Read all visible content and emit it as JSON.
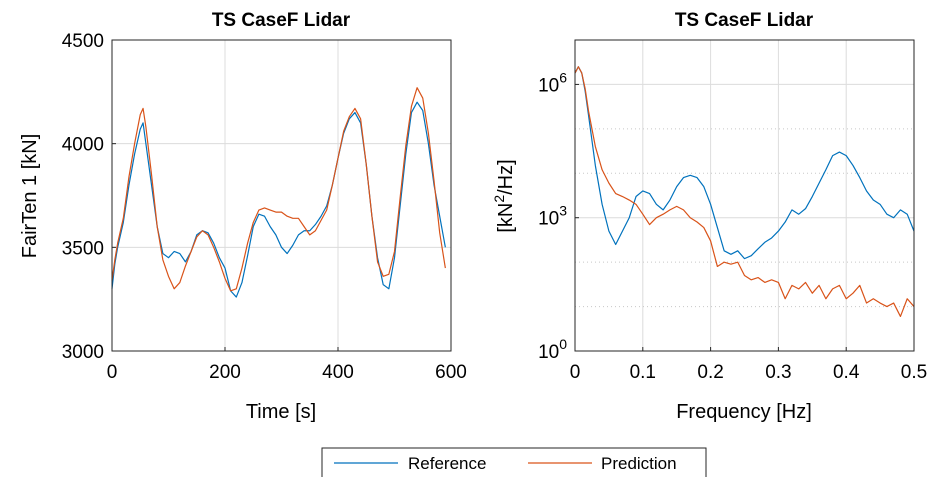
{
  "chart_data": [
    {
      "type": "line",
      "title": "TS CaseF Lidar",
      "xlabel": "Time [s]",
      "ylabel": "FairTen 1 [kN]",
      "xlim": [
        0,
        600
      ],
      "ylim": [
        3000,
        4500
      ],
      "xticks": [
        0,
        200,
        400,
        600
      ],
      "yticks": [
        3000,
        3500,
        4000,
        4500
      ],
      "xtick_labels": [
        "0",
        "200",
        "400",
        "600"
      ],
      "ytick_labels": [
        "3000",
        "3500",
        "4000",
        "4500"
      ],
      "grid": true,
      "series": [
        {
          "name": "Reference",
          "color": "#0072BD",
          "x": [
            0,
            5,
            10,
            20,
            30,
            40,
            50,
            55,
            60,
            70,
            80,
            90,
            100,
            110,
            120,
            130,
            140,
            150,
            160,
            170,
            180,
            190,
            200,
            210,
            220,
            230,
            240,
            250,
            260,
            270,
            280,
            290,
            300,
            310,
            320,
            330,
            340,
            350,
            360,
            370,
            380,
            390,
            400,
            410,
            420,
            430,
            440,
            450,
            460,
            470,
            480,
            490,
            500,
            510,
            520,
            530,
            540,
            550,
            560,
            570,
            580,
            590
          ],
          "y": [
            3300,
            3420,
            3500,
            3620,
            3800,
            3950,
            4070,
            4100,
            4000,
            3800,
            3600,
            3470,
            3450,
            3480,
            3470,
            3430,
            3480,
            3560,
            3580,
            3570,
            3520,
            3450,
            3400,
            3290,
            3260,
            3330,
            3460,
            3600,
            3660,
            3650,
            3600,
            3560,
            3500,
            3470,
            3510,
            3560,
            3580,
            3580,
            3610,
            3650,
            3700,
            3800,
            3930,
            4050,
            4120,
            4150,
            4100,
            3900,
            3650,
            3450,
            3320,
            3300,
            3450,
            3700,
            3950,
            4150,
            4200,
            4160,
            4000,
            3800,
            3650,
            3500
          ]
        },
        {
          "name": "Prediction",
          "color": "#D95319",
          "x": [
            0,
            5,
            10,
            20,
            30,
            40,
            50,
            55,
            60,
            70,
            80,
            90,
            100,
            110,
            120,
            130,
            140,
            150,
            160,
            170,
            180,
            190,
            200,
            210,
            220,
            230,
            240,
            250,
            260,
            270,
            280,
            290,
            300,
            310,
            320,
            330,
            340,
            350,
            360,
            370,
            380,
            390,
            400,
            410,
            420,
            430,
            440,
            450,
            460,
            470,
            480,
            490,
            500,
            510,
            520,
            530,
            540,
            550,
            560,
            570,
            580,
            590
          ],
          "y": [
            3340,
            3440,
            3520,
            3640,
            3840,
            4000,
            4140,
            4170,
            4080,
            3850,
            3600,
            3440,
            3360,
            3300,
            3330,
            3410,
            3480,
            3550,
            3580,
            3560,
            3500,
            3430,
            3350,
            3290,
            3300,
            3400,
            3520,
            3620,
            3680,
            3690,
            3680,
            3670,
            3670,
            3650,
            3640,
            3640,
            3600,
            3560,
            3580,
            3630,
            3680,
            3800,
            3930,
            4060,
            4130,
            4170,
            4120,
            3900,
            3650,
            3430,
            3360,
            3370,
            3480,
            3740,
            3990,
            4180,
            4270,
            4220,
            4050,
            3820,
            3570,
            3400
          ]
        }
      ]
    },
    {
      "type": "line",
      "title": "TS CaseF Lidar",
      "xlabel": "Frequency [Hz]",
      "ylabel": "[kN²/Hz]",
      "yscale": "log",
      "xlim": [
        0,
        0.5
      ],
      "ylim": [
        1,
        10000000
      ],
      "xticks": [
        0,
        0.1,
        0.2,
        0.3,
        0.4,
        0.5
      ],
      "yticks": [
        1,
        1000,
        1000000
      ],
      "xtick_labels": [
        "0",
        "0.1",
        "0.2",
        "0.3",
        "0.4",
        "0.5"
      ],
      "ytick_labels": [
        "10^0",
        "10^3",
        "10^6"
      ],
      "grid": true,
      "series": [
        {
          "name": "Reference",
          "color": "#0072BD",
          "x": [
            0,
            0.005,
            0.01,
            0.015,
            0.02,
            0.03,
            0.04,
            0.05,
            0.06,
            0.07,
            0.08,
            0.09,
            0.1,
            0.11,
            0.12,
            0.13,
            0.14,
            0.15,
            0.16,
            0.17,
            0.18,
            0.19,
            0.2,
            0.21,
            0.22,
            0.23,
            0.24,
            0.25,
            0.26,
            0.27,
            0.28,
            0.29,
            0.3,
            0.31,
            0.32,
            0.33,
            0.34,
            0.35,
            0.36,
            0.37,
            0.38,
            0.39,
            0.4,
            0.41,
            0.42,
            0.43,
            0.44,
            0.45,
            0.46,
            0.47,
            0.48,
            0.49,
            0.5
          ],
          "y": [
            1800000,
            2500000,
            1800000,
            700000,
            200000,
            15000,
            2000,
            500,
            250,
            500,
            1000,
            3000,
            4000,
            3500,
            2000,
            1500,
            2500,
            5000,
            8000,
            9000,
            8000,
            5000,
            2000,
            600,
            180,
            150,
            180,
            120,
            140,
            200,
            280,
            350,
            500,
            800,
            1500,
            1200,
            1600,
            3000,
            6000,
            12000,
            25000,
            30000,
            25000,
            15000,
            8000,
            4000,
            2500,
            2000,
            1200,
            1000,
            1500,
            1200,
            500
          ]
        },
        {
          "name": "Prediction",
          "color": "#D95319",
          "x": [
            0,
            0.005,
            0.01,
            0.015,
            0.02,
            0.03,
            0.04,
            0.05,
            0.06,
            0.07,
            0.08,
            0.09,
            0.1,
            0.11,
            0.12,
            0.13,
            0.14,
            0.15,
            0.16,
            0.17,
            0.18,
            0.19,
            0.2,
            0.21,
            0.22,
            0.23,
            0.24,
            0.25,
            0.26,
            0.27,
            0.28,
            0.29,
            0.3,
            0.31,
            0.32,
            0.33,
            0.34,
            0.35,
            0.36,
            0.37,
            0.38,
            0.39,
            0.4,
            0.41,
            0.42,
            0.43,
            0.44,
            0.45,
            0.46,
            0.47,
            0.48,
            0.49,
            0.5
          ],
          "y": [
            1800000,
            2500000,
            1800000,
            800000,
            250000,
            40000,
            12000,
            6000,
            3500,
            3000,
            2500,
            2000,
            1200,
            700,
            1000,
            1200,
            1500,
            1800,
            1500,
            1000,
            800,
            600,
            300,
            80,
            100,
            90,
            100,
            50,
            40,
            45,
            35,
            40,
            35,
            15,
            30,
            25,
            35,
            20,
            30,
            15,
            25,
            30,
            15,
            20,
            30,
            12,
            15,
            12,
            10,
            12,
            6,
            15,
            10
          ]
        }
      ]
    }
  ],
  "legend": {
    "placement": "bottom-center",
    "entries": [
      {
        "label": "Reference",
        "color": "#0072BD"
      },
      {
        "label": "Prediction",
        "color": "#D95319"
      }
    ]
  }
}
